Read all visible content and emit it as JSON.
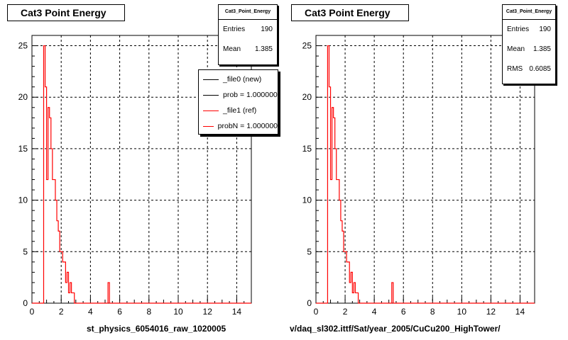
{
  "chart_data": [
    {
      "type": "histogram",
      "title": "Cat3 Point Energy",
      "xlabel": "st_physics_6054016_raw_1020005",
      "xlim": [
        0,
        15
      ],
      "ylim": [
        0,
        26
      ],
      "xticks": [
        0,
        2,
        4,
        6,
        8,
        10,
        12,
        14
      ],
      "yticks": [
        0,
        5,
        10,
        15,
        20,
        25
      ],
      "bin_width": 0.1,
      "grid": true,
      "stats": {
        "name": "Cat3_Point_Energy",
        "rows": [
          {
            "label": "Entries",
            "value": "190"
          },
          {
            "label": "Mean",
            "value": "1.385"
          }
        ]
      },
      "legend": {
        "placement": "top-right",
        "entries": [
          {
            "label": "_file0 (new)",
            "color": "#000000"
          },
          {
            "label": "prob = 1.000000",
            "color": "#000000"
          },
          {
            "label": "_file1 (ref)",
            "color": "#ff0000"
          },
          {
            "label": "probN = 1.000000",
            "color": "#ff0000"
          }
        ]
      },
      "series": [
        {
          "color": "#ff0000",
          "bins": [
            [
              0.8,
              25
            ],
            [
              0.9,
              21
            ],
            [
              1.0,
              12
            ],
            [
              1.1,
              19
            ],
            [
              1.2,
              18
            ],
            [
              1.3,
              15
            ],
            [
              1.4,
              12
            ],
            [
              1.5,
              12
            ],
            [
              1.6,
              10
            ],
            [
              1.7,
              8
            ],
            [
              1.8,
              7
            ],
            [
              1.9,
              5
            ],
            [
              2.0,
              5
            ],
            [
              2.1,
              4
            ],
            [
              2.2,
              4
            ],
            [
              2.3,
              2
            ],
            [
              2.4,
              3
            ],
            [
              2.5,
              1
            ],
            [
              2.6,
              2
            ],
            [
              2.7,
              1
            ],
            [
              2.8,
              1
            ],
            [
              5.2,
              2
            ]
          ]
        }
      ]
    },
    {
      "type": "histogram",
      "title": "Cat3 Point Energy",
      "xlabel": "v/daq_sl302.ittf/Sat/year_2005/CuCu200_HighTower/",
      "xlim": [
        0,
        15
      ],
      "ylim": [
        0,
        26
      ],
      "xticks": [
        0,
        2,
        4,
        6,
        8,
        10,
        12,
        14
      ],
      "yticks": [
        0,
        5,
        10,
        15,
        20,
        25
      ],
      "bin_width": 0.1,
      "grid": true,
      "stats": {
        "name": "Cat3_Point_Energy",
        "rows": [
          {
            "label": "Entries",
            "value": "190"
          },
          {
            "label": "Mean",
            "value": "1.385"
          },
          {
            "label": "RMS",
            "value": "0.6085"
          }
        ]
      },
      "series": [
        {
          "color": "#ff0000",
          "bins": [
            [
              0.8,
              25
            ],
            [
              0.9,
              21
            ],
            [
              1.0,
              12
            ],
            [
              1.1,
              19
            ],
            [
              1.2,
              18
            ],
            [
              1.3,
              15
            ],
            [
              1.4,
              12
            ],
            [
              1.5,
              12
            ],
            [
              1.6,
              10
            ],
            [
              1.7,
              8
            ],
            [
              1.8,
              7
            ],
            [
              1.9,
              5
            ],
            [
              2.0,
              5
            ],
            [
              2.1,
              4
            ],
            [
              2.2,
              4
            ],
            [
              2.3,
              2
            ],
            [
              2.4,
              3
            ],
            [
              2.5,
              1
            ],
            [
              2.6,
              2
            ],
            [
              2.7,
              1
            ],
            [
              2.8,
              1
            ],
            [
              5.2,
              2
            ]
          ]
        }
      ]
    }
  ]
}
